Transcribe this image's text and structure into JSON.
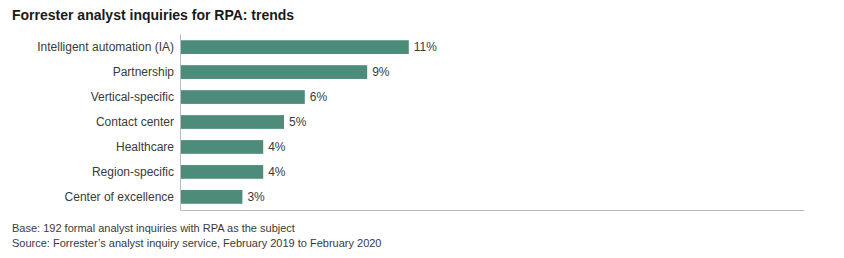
{
  "chart_data": {
    "type": "bar",
    "orientation": "horizontal",
    "title": "Forrester analyst inquiries for RPA: trends",
    "categories": [
      "Intelligent automation (IA)",
      "Partnership",
      "Vertical-specific",
      "Contact center",
      "Healthcare",
      "Region-specific",
      "Center of excellence"
    ],
    "values": [
      11,
      9,
      6,
      5,
      4,
      4,
      3
    ],
    "value_labels": [
      "11%",
      "9%",
      "6%",
      "5%",
      "4%",
      "4%",
      "3%"
    ],
    "data_labels": true,
    "color": "#4d8c7b",
    "xlim": [
      0,
      30
    ],
    "tick_labels": "y",
    "grid": false,
    "annotations": [
      "Base: 192 formal analyst inquiries with RPA as the subject",
      "Source: Forrester’s analyst inquiry service, February 2019 to February 2020"
    ]
  }
}
